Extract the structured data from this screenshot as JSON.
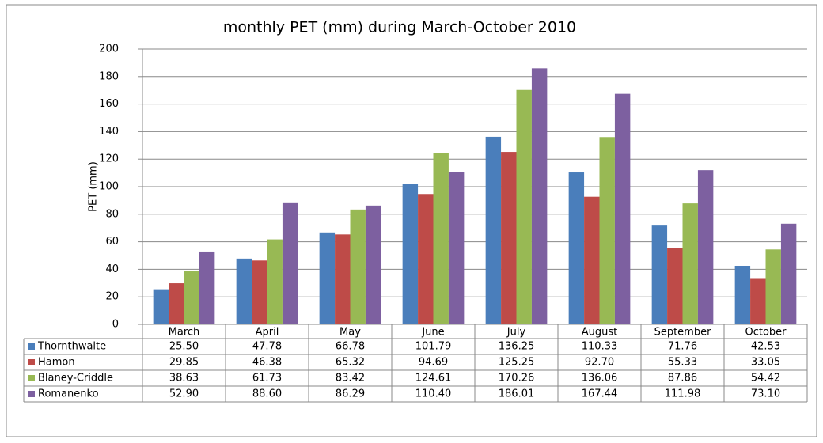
{
  "chart_data": {
    "type": "bar",
    "title": "monthly PET (mm) during March-October 2010",
    "y_label": "PET (mm)",
    "categories": [
      "March",
      "April",
      "May",
      "June",
      "July",
      "August",
      "September",
      "October"
    ],
    "series": [
      {
        "name": "Thornthwaite",
        "color": "#4a7ebb",
        "values": [
          25.5,
          47.78,
          66.78,
          101.79,
          136.25,
          110.33,
          71.76,
          42.53
        ],
        "value_labels": [
          "25.50",
          "47.78",
          "66.78",
          "101.79",
          "136.25",
          "110.33",
          "71.76",
          "42.53"
        ]
      },
      {
        "name": "Hamon",
        "color": "#be4b48",
        "values": [
          29.85,
          46.38,
          65.32,
          94.69,
          125.25,
          92.7,
          55.33,
          33.05
        ],
        "value_labels": [
          "29.85",
          "46.38",
          "65.32",
          "94.69",
          "125.25",
          "92.70",
          "55.33",
          "33.05"
        ]
      },
      {
        "name": "Blaney-Criddle",
        "color": "#98b954",
        "values": [
          38.63,
          61.73,
          83.42,
          124.61,
          170.26,
          136.06,
          87.86,
          54.42
        ],
        "value_labels": [
          "38.63",
          "61.73",
          "83.42",
          "124.61",
          "170.26",
          "136.06",
          "87.86",
          "54.42"
        ]
      },
      {
        "name": "Romanenko",
        "color": "#7d60a0",
        "values": [
          52.9,
          88.6,
          86.29,
          110.4,
          186.01,
          167.44,
          111.98,
          73.1
        ],
        "value_labels": [
          "52.90",
          "88.60",
          "86.29",
          "110.40",
          "186.01",
          "167.44",
          "111.98",
          "73.10"
        ]
      }
    ],
    "ylim": [
      0,
      200
    ],
    "yticks": [
      0,
      20,
      40,
      60,
      80,
      100,
      120,
      140,
      160,
      180,
      200
    ],
    "grid": true
  }
}
